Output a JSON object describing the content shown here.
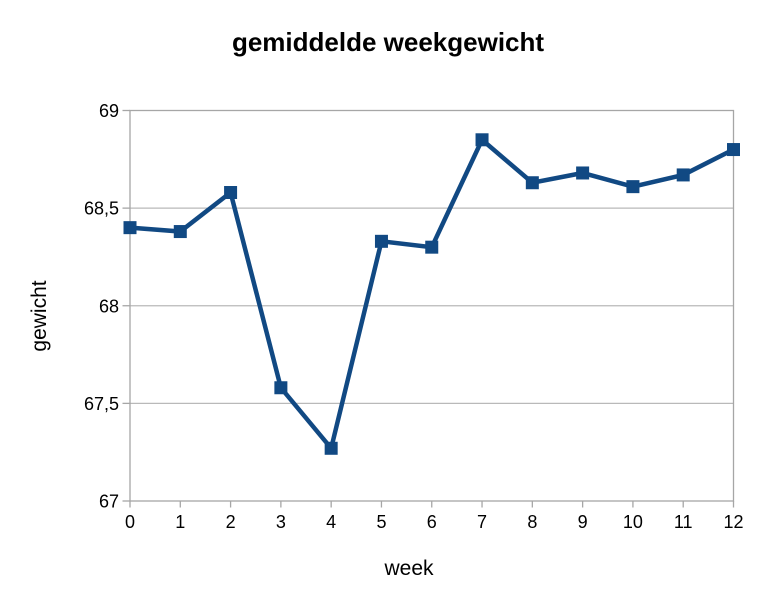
{
  "chart_data": {
    "type": "line",
    "title": "gemiddelde weekgewicht",
    "xlabel": "week",
    "ylabel": "gewicht",
    "x": [
      0,
      1,
      2,
      3,
      4,
      5,
      6,
      7,
      8,
      9,
      10,
      11,
      12
    ],
    "series": [
      {
        "name": "gewicht",
        "values": [
          68.4,
          68.38,
          68.58,
          67.58,
          67.27,
          68.33,
          68.3,
          68.85,
          68.63,
          68.68,
          68.61,
          68.67,
          68.8
        ],
        "color": "#114983",
        "marker": "square"
      }
    ],
    "xlim": [
      0,
      12
    ],
    "ylim": [
      67,
      69
    ],
    "x_ticks": [
      {
        "v": 0,
        "label": "0"
      },
      {
        "v": 1,
        "label": "1"
      },
      {
        "v": 2,
        "label": "2"
      },
      {
        "v": 3,
        "label": "3"
      },
      {
        "v": 4,
        "label": "4"
      },
      {
        "v": 5,
        "label": "5"
      },
      {
        "v": 6,
        "label": "6"
      },
      {
        "v": 7,
        "label": "7"
      },
      {
        "v": 8,
        "label": "8"
      },
      {
        "v": 9,
        "label": "9"
      },
      {
        "v": 10,
        "label": "10"
      },
      {
        "v": 11,
        "label": "11"
      },
      {
        "v": 12,
        "label": "12"
      }
    ],
    "y_ticks": [
      {
        "v": 67,
        "label": "67"
      },
      {
        "v": 67.5,
        "label": "67,5"
      },
      {
        "v": 68,
        "label": "68"
      },
      {
        "v": 68.5,
        "label": "68,5"
      },
      {
        "v": 69,
        "label": "69"
      }
    ],
    "grid": "horizontal",
    "legend": "none",
    "colors": {
      "series": "#114983",
      "gridline": "#b9b9b9",
      "axis": "#a6a6a6",
      "text": "#000000",
      "background": "#ffffff"
    }
  }
}
